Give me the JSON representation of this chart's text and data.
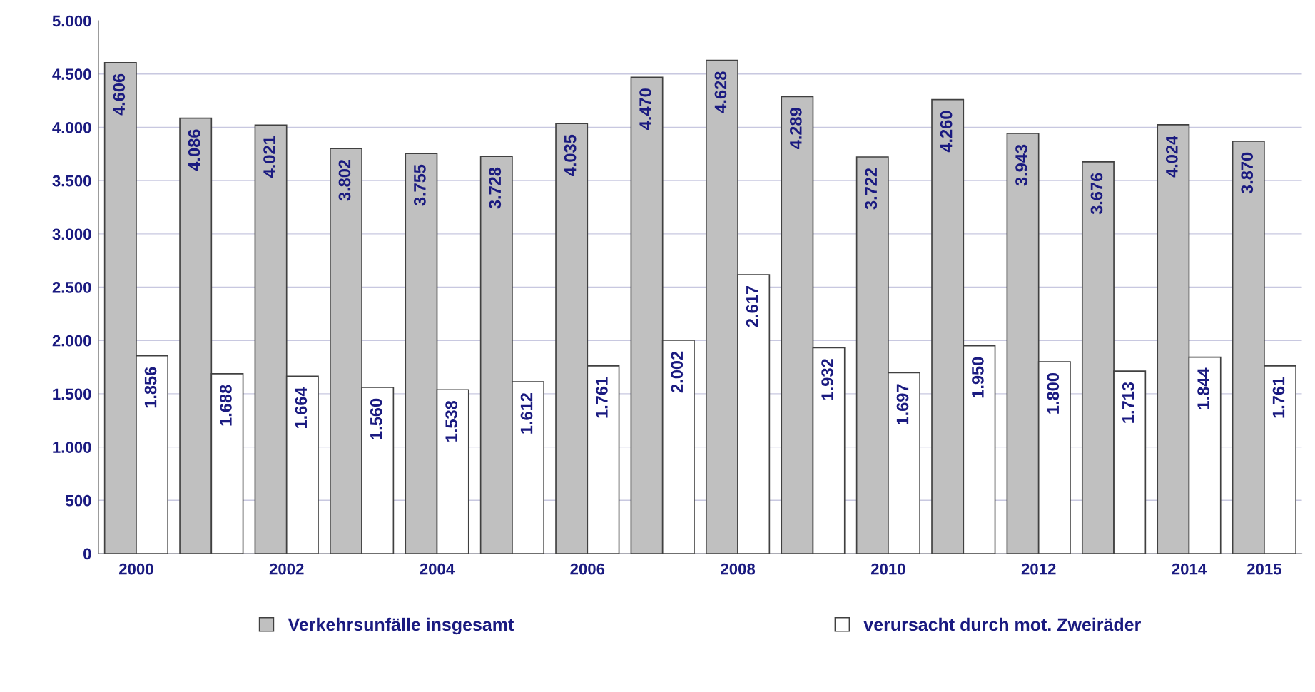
{
  "chart_data": {
    "type": "bar",
    "categories": [
      "2000",
      null,
      "2002",
      null,
      "2004",
      null,
      "2006",
      null,
      "2008",
      null,
      "2010",
      null,
      "2012",
      null,
      "2014",
      "2015"
    ],
    "series": [
      {
        "name": "Verkehrsunfälle insgesamt",
        "color": "#c0c0c0",
        "values": [
          4606,
          4086,
          4021,
          3802,
          3755,
          3728,
          4035,
          4470,
          4628,
          4289,
          3722,
          4260,
          3943,
          3676,
          4024,
          3870
        ],
        "value_labels": [
          "4.606",
          "4.086",
          "4.021",
          "3.802",
          "3.755",
          "3.728",
          "4.035",
          "4.470",
          "4.628",
          "4.289",
          "3.722",
          "4.260",
          "3.943",
          "3.676",
          "4.024",
          "3.870"
        ]
      },
      {
        "name": "verursacht durch mot. Zweiräder",
        "color": "#ffffff",
        "values": [
          1856,
          1688,
          1664,
          1560,
          1538,
          1612,
          1761,
          2002,
          2617,
          1932,
          1697,
          1950,
          1800,
          1713,
          1844,
          1761
        ],
        "value_labels": [
          "1.856",
          "1.688",
          "1.664",
          "1.560",
          "1.538",
          "1.612",
          "1.761",
          "2.002",
          "2.617",
          "1.932",
          "1.697",
          "1.950",
          "1.800",
          "1.713",
          "1.844",
          "1.761"
        ]
      }
    ],
    "ylim": [
      0,
      5000
    ],
    "yticks": [
      0,
      500,
      {
        "value": 1000,
        "label": "1.000"
      },
      {
        "value": 1500,
        "label": "1.500"
      },
      {
        "value": 2000,
        "label": "2.000"
      },
      {
        "value": 2500,
        "label": "2.500"
      },
      {
        "value": 3000,
        "label": "3.000"
      },
      {
        "value": 3500,
        "label": "3.500"
      },
      {
        "value": 4000,
        "label": "4.000"
      },
      {
        "value": 4500,
        "label": "4.500"
      },
      {
        "value": 5000,
        "label": "5.000"
      }
    ],
    "grid": "y",
    "legend": "bottom"
  }
}
